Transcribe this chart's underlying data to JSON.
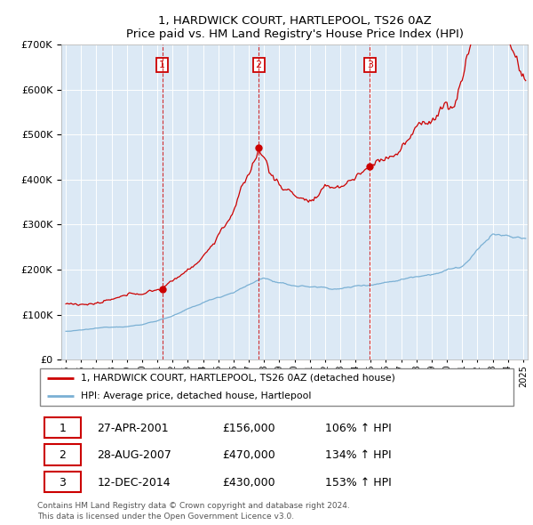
{
  "title": "1, HARDWICK COURT, HARTLEPOOL, TS26 0AZ",
  "subtitle": "Price paid vs. HM Land Registry's House Price Index (HPI)",
  "ylim": [
    0,
    700000
  ],
  "yticks": [
    0,
    100000,
    200000,
    300000,
    400000,
    500000,
    600000,
    700000
  ],
  "sale_dates_num": [
    2001.32,
    2007.65,
    2014.95
  ],
  "sale_prices": [
    156000,
    470000,
    430000
  ],
  "sale_labels": [
    "1",
    "2",
    "3"
  ],
  "vline_color": "#cc0000",
  "sale_color": "#cc0000",
  "hpi_color": "#7ab0d4",
  "plot_bg_color": "#dce9f5",
  "legend_sale_label": "1, HARDWICK COURT, HARTLEPOOL, TS26 0AZ (detached house)",
  "legend_hpi_label": "HPI: Average price, detached house, Hartlepool",
  "table_rows": [
    [
      "1",
      "27-APR-2001",
      "£156,000",
      "106% ↑ HPI"
    ],
    [
      "2",
      "28-AUG-2007",
      "£470,000",
      "134% ↑ HPI"
    ],
    [
      "3",
      "12-DEC-2014",
      "£430,000",
      "153% ↑ HPI"
    ]
  ],
  "footnote": "Contains HM Land Registry data © Crown copyright and database right 2024.\nThis data is licensed under the Open Government Licence v3.0.",
  "background_color": "#ffffff",
  "grid_color": "#ffffff"
}
